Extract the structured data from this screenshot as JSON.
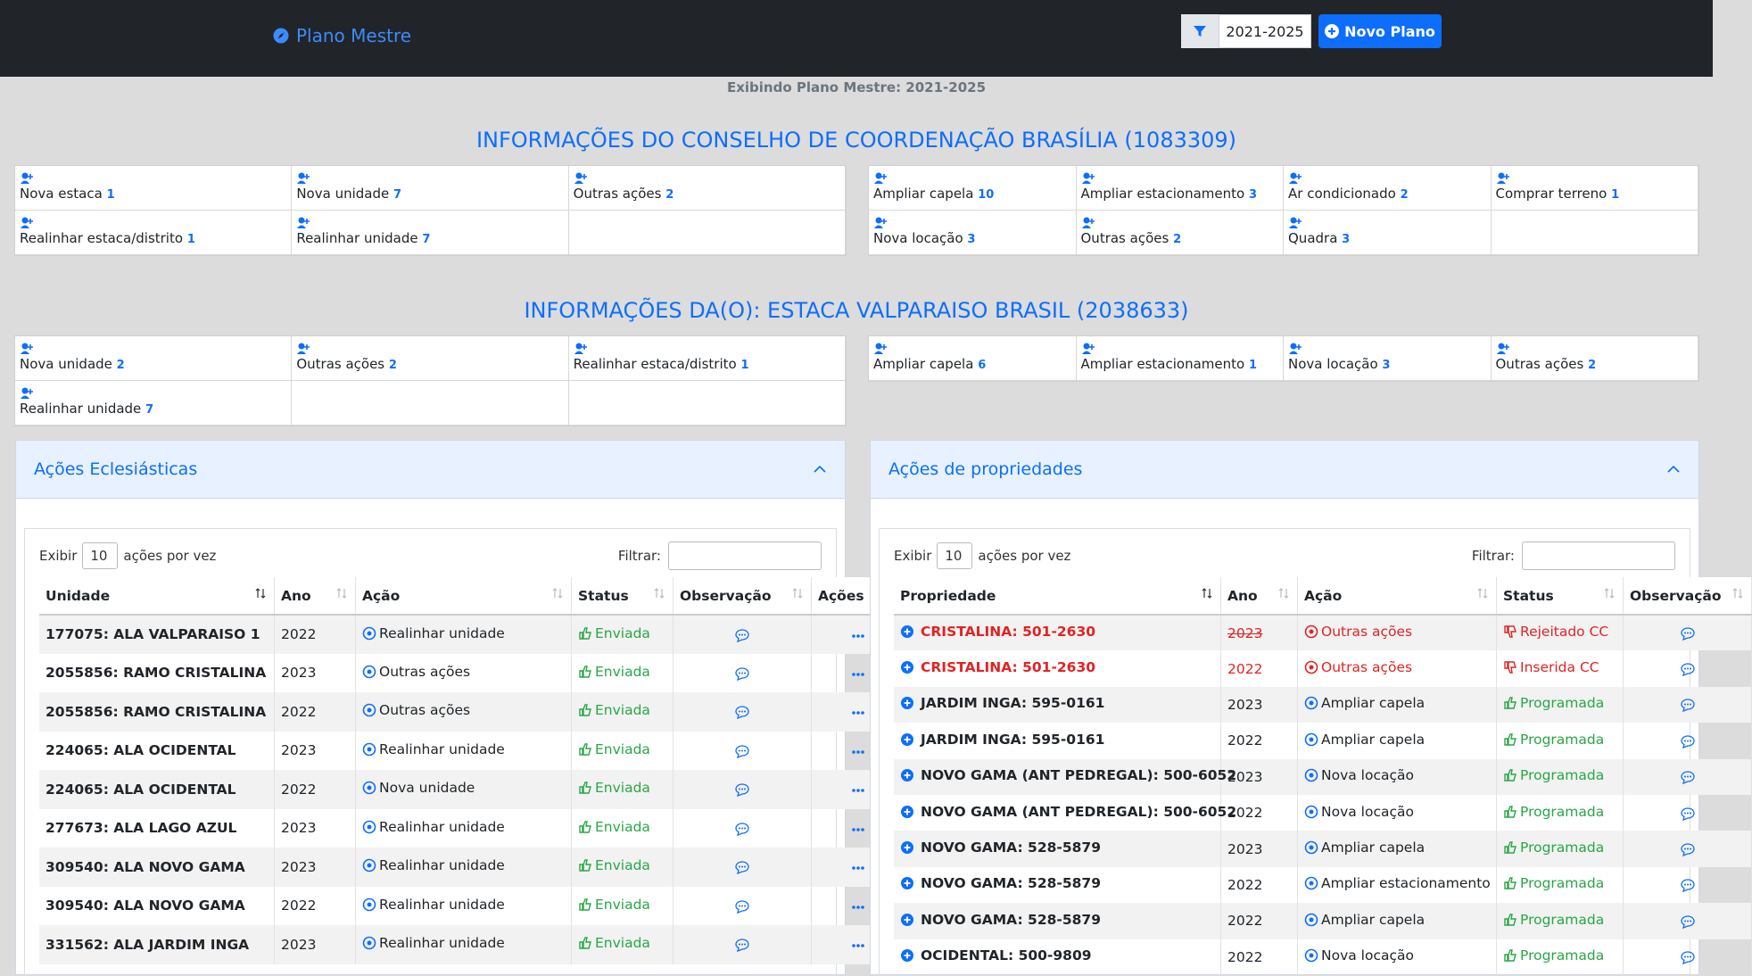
{
  "header": {
    "brand": "Plano Mestre",
    "filter_value": "2021-2025",
    "new_button": "Novo Plano"
  },
  "subtitle": "Exibindo Plano Mestre: 2021-2025",
  "council": {
    "title": "INFORMAÇÕES DO CONSELHO DE COORDENAÇÃO BRASÍLIA (1083309)",
    "ecclesiastical": [
      {
        "label": "Nova estaca",
        "count": 1
      },
      {
        "label": "Nova unidade",
        "count": 7
      },
      {
        "label": "Outras ações",
        "count": 2
      },
      {
        "label": "Realinhar estaca/distrito",
        "count": 1
      },
      {
        "label": "Realinhar unidade",
        "count": 7
      }
    ],
    "property": [
      {
        "label": "Ampliar capela",
        "count": 10
      },
      {
        "label": "Ampliar estacionamento",
        "count": 3
      },
      {
        "label": "Ar condicionado",
        "count": 2
      },
      {
        "label": "Comprar terreno",
        "count": 1
      },
      {
        "label": "Nova locação",
        "count": 3
      },
      {
        "label": "Outras ações",
        "count": 2
      },
      {
        "label": "Quadra",
        "count": 3
      }
    ]
  },
  "stake": {
    "title": "INFORMAÇÕES DA(O): ESTACA VALPARAISO BRASIL (2038633)",
    "ecclesiastical": [
      {
        "label": "Nova unidade",
        "count": 2
      },
      {
        "label": "Outras ações",
        "count": 2
      },
      {
        "label": "Realinhar estaca/distrito",
        "count": 1
      },
      {
        "label": "Realinhar unidade",
        "count": 7
      }
    ],
    "property": [
      {
        "label": "Ampliar capela",
        "count": 6
      },
      {
        "label": "Ampliar estacionamento",
        "count": 1
      },
      {
        "label": "Nova locação",
        "count": 3
      },
      {
        "label": "Outras ações",
        "count": 2
      }
    ]
  },
  "ecclesiastical_panel": {
    "title": "Ações Eclesiásticas",
    "show": "Exibir",
    "page_size": 10,
    "per_page": "ações por vez",
    "filter": "Filtrar:",
    "columns": [
      "Unidade",
      "Ano",
      "Ação",
      "Status",
      "Observação",
      "Ações"
    ],
    "rows": [
      {
        "cells": [
          "177075: ALA VALPARAISO 1",
          2022,
          "Realinhar unidade",
          "Enviada"
        ]
      },
      {
        "cells": [
          "2055856: RAMO CRISTALINA",
          2023,
          "Outras ações",
          "Enviada"
        ]
      },
      {
        "cells": [
          "2055856: RAMO CRISTALINA",
          2022,
          "Outras ações",
          "Enviada"
        ]
      },
      {
        "cells": [
          "224065: ALA OCIDENTAL",
          2023,
          "Realinhar unidade",
          "Enviada"
        ]
      },
      {
        "cells": [
          "224065: ALA OCIDENTAL",
          2022,
          "Nova unidade",
          "Enviada"
        ]
      },
      {
        "cells": [
          "277673: ALA LAGO AZUL",
          2023,
          "Realinhar unidade",
          "Enviada"
        ]
      },
      {
        "cells": [
          "309540: ALA NOVO GAMA",
          2023,
          "Realinhar unidade",
          "Enviada"
        ]
      },
      {
        "cells": [
          "309540: ALA NOVO GAMA",
          2022,
          "Realinhar unidade",
          "Enviada"
        ]
      },
      {
        "cells": [
          "331562: ALA JARDIM INGA",
          2023,
          "Realinhar unidade",
          "Enviada"
        ]
      }
    ]
  },
  "property_panel": {
    "title": "Ações de propriedades",
    "show": "Exibir",
    "page_size": 10,
    "per_page": "ações por vez",
    "filter": "Filtrar:",
    "columns": [
      "Propriedade",
      "Ano",
      "Ação",
      "Status",
      "Observação"
    ],
    "rows": [
      {
        "cells": [
          "CRISTALINA: 501-2630",
          2023,
          "Outras ações",
          "Rejeitado CC"
        ],
        "color": "#e02424",
        "strike": true
      },
      {
        "cells": [
          "CRISTALINA: 501-2630",
          2022,
          "Outras ações",
          "Inserida CC"
        ],
        "color": "#e02424"
      },
      {
        "cells": [
          "JARDIM INGA: 595-0161",
          2023,
          "Ampliar capela",
          "Programada"
        ]
      },
      {
        "cells": [
          "JARDIM INGA: 595-0161",
          2022,
          "Ampliar capela",
          "Programada"
        ]
      },
      {
        "cells": [
          "NOVO GAMA (ANT PEDREGAL): 500-6052",
          2023,
          "Nova locação",
          "Programada"
        ]
      },
      {
        "cells": [
          "NOVO GAMA (ANT PEDREGAL): 500-6052",
          2022,
          "Nova locação",
          "Programada"
        ]
      },
      {
        "cells": [
          "NOVO GAMA: 528-5879",
          2023,
          "Ampliar capela",
          "Programada"
        ]
      },
      {
        "cells": [
          "NOVO GAMA: 528-5879",
          2022,
          "Ampliar estacionamento",
          "Programada"
        ]
      },
      {
        "cells": [
          "NOVO GAMA: 528-5879",
          2022,
          "Ampliar capela",
          "Programada"
        ]
      },
      {
        "cells": [
          "OCIDENTAL: 500-9809",
          2022,
          "Nova locação",
          "Programada"
        ]
      }
    ]
  }
}
